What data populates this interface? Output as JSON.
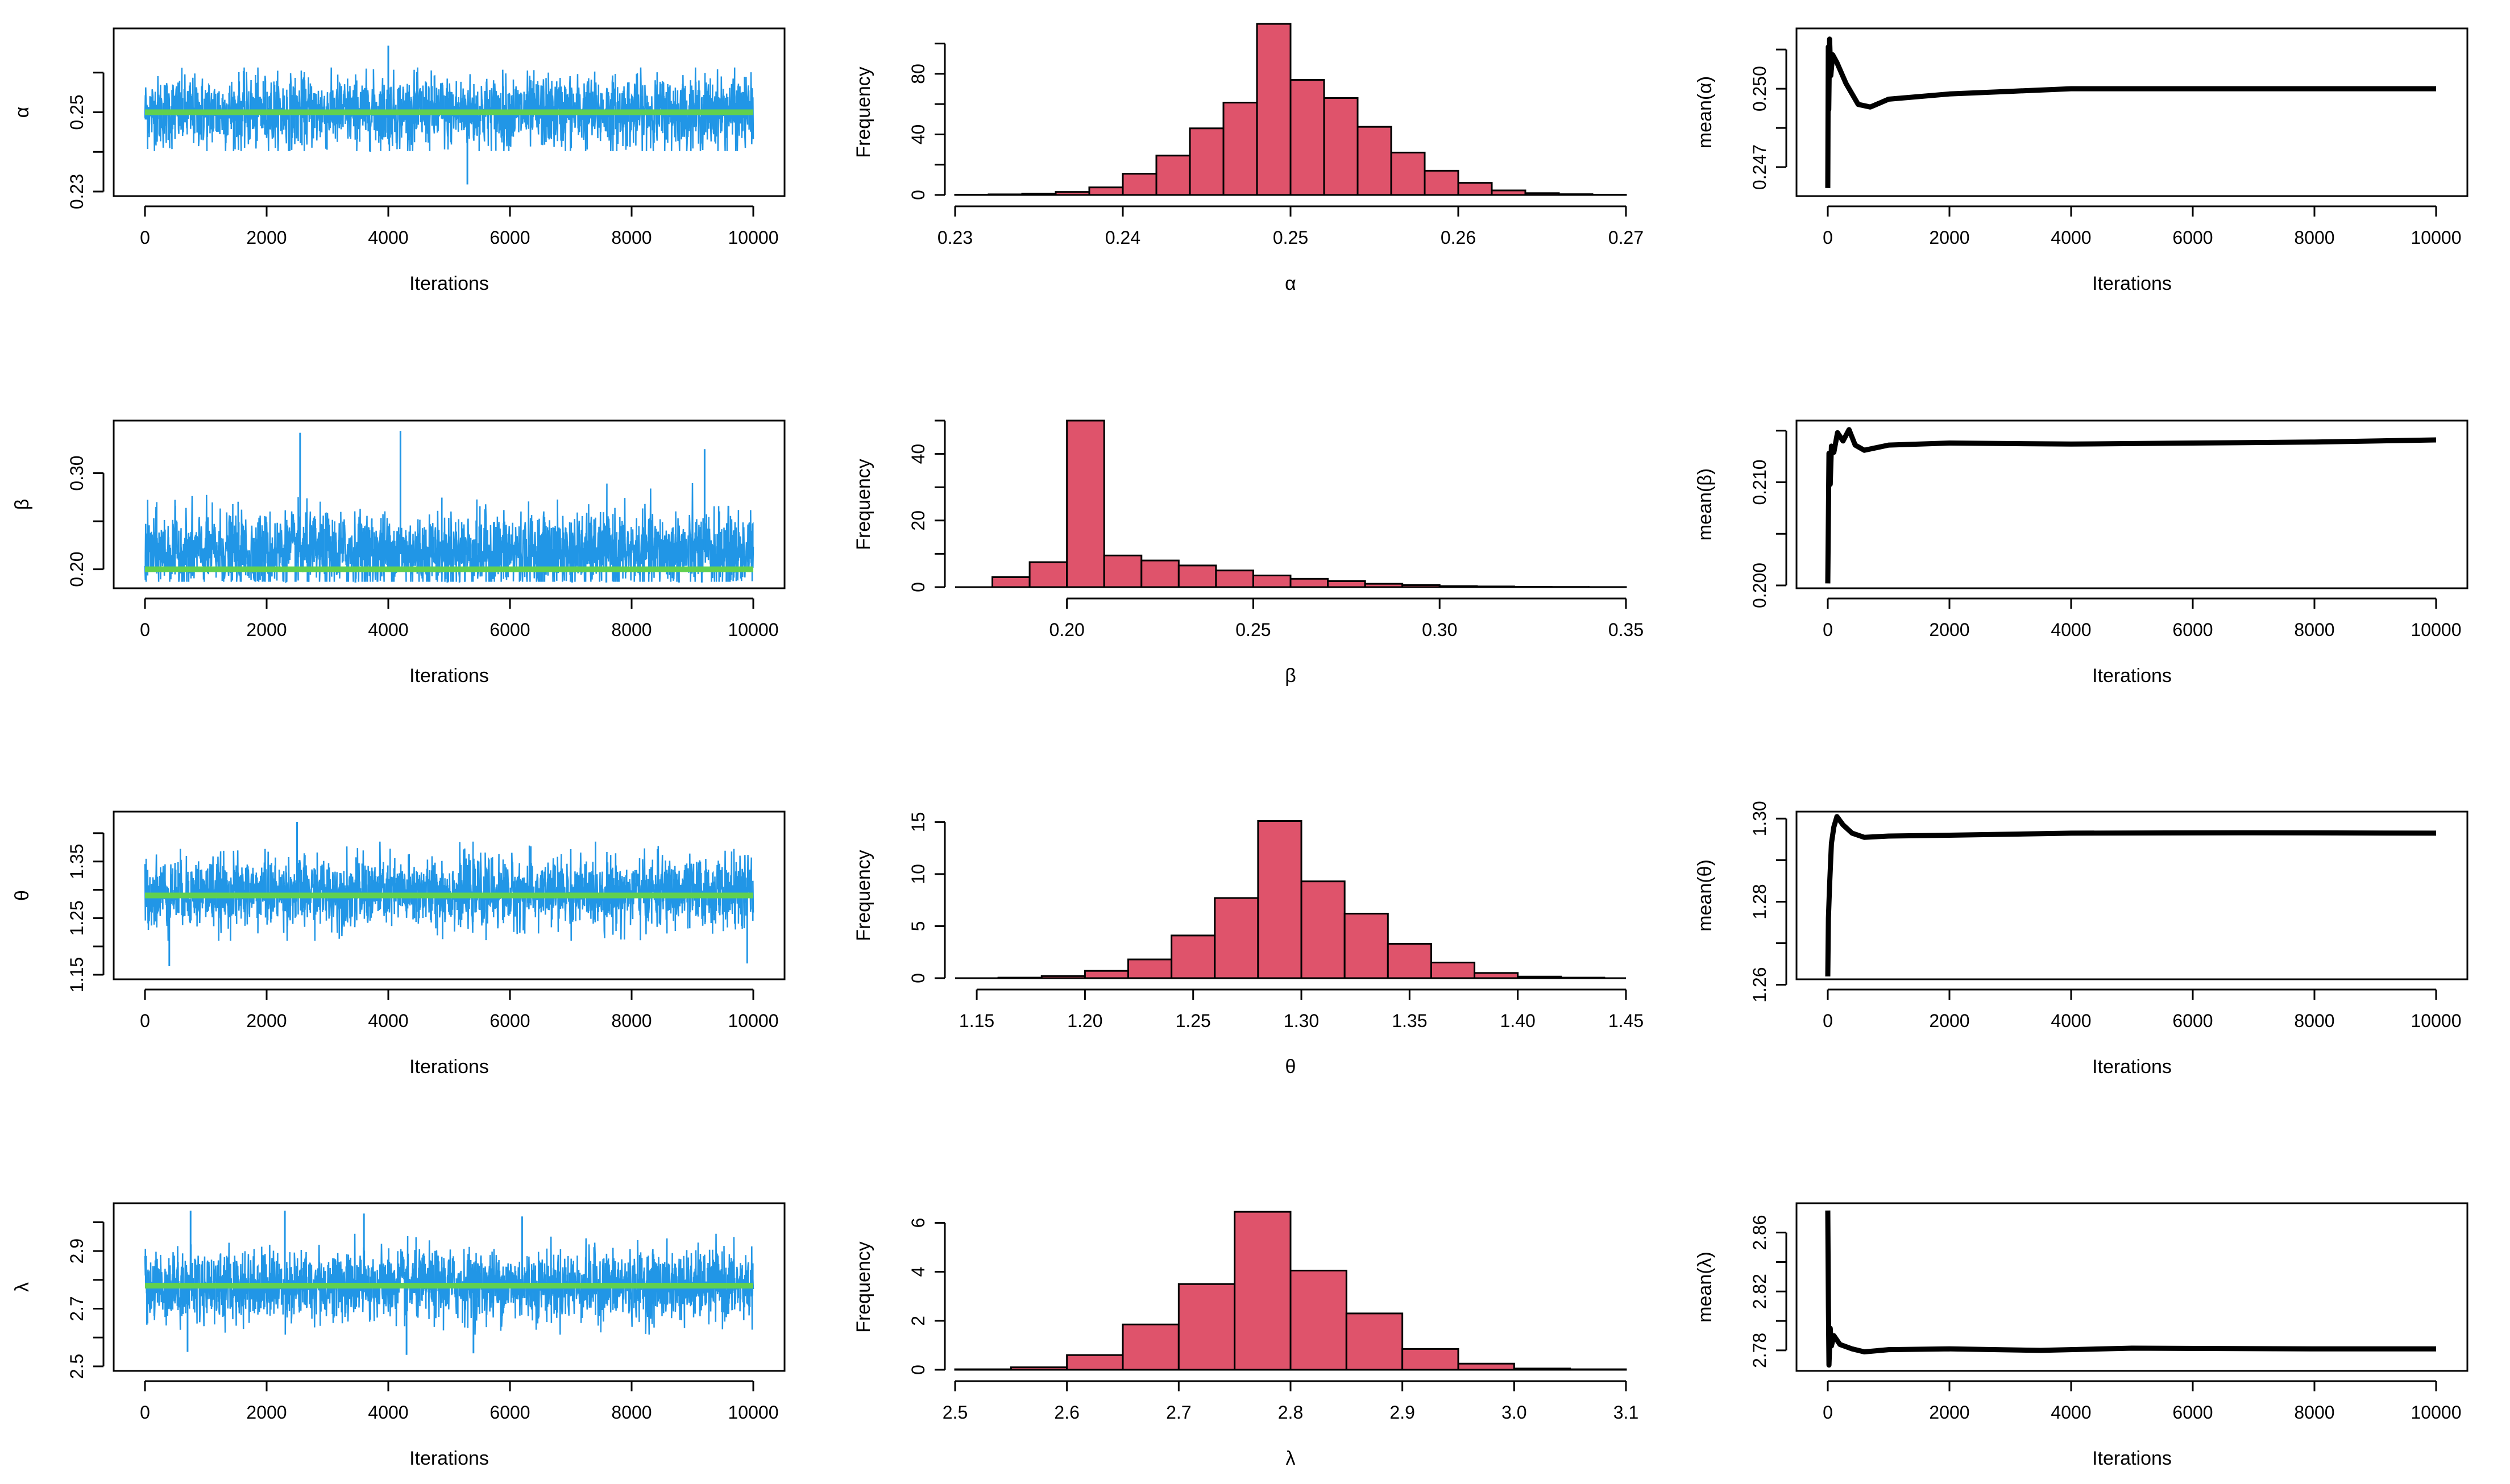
{
  "styles": {
    "trace_color": "#2196e6",
    "true_value_color": "#61d04f",
    "hist_fill": "#df536b",
    "line_color": "#000000"
  },
  "panels": [
    {
      "param": "α",
      "trace": {
        "type": "line",
        "xlabel": "Iterations",
        "ylabel": "α",
        "xlim": [
          0,
          10000
        ],
        "ylim": [
          0.23,
          0.27
        ],
        "x_ticks": [
          0,
          2000,
          4000,
          6000,
          8000,
          10000
        ],
        "y_ticks": [
          0.23,
          0.25
        ],
        "y_tick_labels": [
          "0.23",
          "0.25"
        ],
        "y_minor_ticks": [
          0.24,
          0.26
        ],
        "mean": 0.25,
        "sd": 0.0045,
        "spread_min": 0.2402,
        "spread_max": 0.2613,
        "extreme_lows": [
          {
            "x": 5300,
            "y": 0.2318
          }
        ],
        "extreme_highs": [
          {
            "x": 4000,
            "y": 0.2668
          }
        ],
        "true_value": 0.25
      },
      "histogram": {
        "type": "bar",
        "xlabel": "α",
        "ylabel": "Frequency",
        "xlim": [
          0.23,
          0.27
        ],
        "ylim": [
          0,
          110
        ],
        "x_ticks": [
          0.23,
          0.24,
          0.25,
          0.26,
          0.27
        ],
        "x_tick_labels": [
          "0.23",
          "0.24",
          "0.25",
          "0.26",
          "0.27"
        ],
        "y_ticks": [
          0,
          40,
          80
        ],
        "y_minor_ticks": [
          20,
          60,
          100
        ],
        "bins_start": 0.23,
        "bin_width": 0.002,
        "counts": [
          0.2,
          0.4,
          0.8,
          2,
          5,
          14,
          26,
          44,
          61,
          113,
          76,
          64,
          45,
          28,
          16,
          8,
          3,
          1.2,
          0.5,
          0.2
        ]
      },
      "running_mean": {
        "type": "line",
        "xlabel": "Iterations",
        "ylabel": "mean(α)",
        "xlim": [
          0,
          10000
        ],
        "ylim": [
          0.246,
          0.2522
        ],
        "x_ticks": [
          0,
          2000,
          4000,
          6000,
          8000,
          10000
        ],
        "y_ticks": [
          0.247,
          0.25
        ],
        "y_tick_labels": [
          "0.247",
          "0.250"
        ],
        "y_minor_ticks": [
          0.2485,
          0.2515
        ],
        "points": [
          [
            0,
            0.2462
          ],
          [
            8,
            0.2516
          ],
          [
            16,
            0.2492
          ],
          [
            30,
            0.2519
          ],
          [
            50,
            0.2505
          ],
          [
            80,
            0.2513
          ],
          [
            150,
            0.251
          ],
          [
            300,
            0.2502
          ],
          [
            500,
            0.2494
          ],
          [
            700,
            0.2493
          ],
          [
            1000,
            0.2496
          ],
          [
            2000,
            0.2498
          ],
          [
            3000,
            0.2499
          ],
          [
            4000,
            0.25
          ],
          [
            10000,
            0.25
          ]
        ]
      }
    },
    {
      "param": "β",
      "trace": {
        "type": "line",
        "xlabel": "Iterations",
        "ylabel": "β",
        "xlim": [
          0,
          10000
        ],
        "ylim": [
          0.185,
          0.35
        ],
        "x_ticks": [
          0,
          2000,
          4000,
          6000,
          8000,
          10000
        ],
        "y_ticks": [
          0.2,
          0.3
        ],
        "y_tick_labels": [
          "0.20",
          "0.30"
        ],
        "y_minor_ticks": [
          0.25
        ],
        "mean": 0.218,
        "sd": 0.02,
        "spread_min": 0.187,
        "spread_max": 0.3,
        "extreme_highs": [
          {
            "x": 2550,
            "y": 0.342
          },
          {
            "x": 4200,
            "y": 0.344
          },
          {
            "x": 9200,
            "y": 0.325
          }
        ],
        "extreme_lows": [],
        "true_value": 0.2
      },
      "histogram": {
        "type": "bar",
        "xlabel": "β",
        "ylabel": "Frequency",
        "xlim": [
          0.17,
          0.35
        ],
        "ylim": [
          0,
          50
        ],
        "x_ticks": [
          0.2,
          0.25,
          0.3,
          0.35
        ],
        "x_tick_labels": [
          "0.20",
          "0.25",
          "0.30",
          "0.35"
        ],
        "y_ticks": [
          0,
          20,
          40
        ],
        "y_minor_ticks": [
          10,
          30,
          50
        ],
        "bins_start": 0.18,
        "bin_width": 0.01,
        "counts": [
          3,
          7.5,
          50,
          9.5,
          8,
          6.5,
          5,
          3.5,
          2.5,
          1.8,
          1,
          0.6,
          0.3,
          0.2,
          0.1,
          0.05,
          0.02
        ]
      },
      "running_mean": {
        "type": "line",
        "xlabel": "Iterations",
        "ylabel": "mean(β)",
        "xlim": [
          0,
          10000
        ],
        "ylim": [
          0.2,
          0.2157
        ],
        "x_ticks": [
          0,
          2000,
          4000,
          6000,
          8000,
          10000
        ],
        "y_ticks": [
          0.2,
          0.21
        ],
        "y_tick_labels": [
          "0.200",
          "0.210"
        ],
        "y_minor_ticks": [
          0.205,
          0.215
        ],
        "points": [
          [
            0,
            0.2002
          ],
          [
            20,
            0.2128
          ],
          [
            40,
            0.2098
          ],
          [
            60,
            0.2135
          ],
          [
            100,
            0.2129
          ],
          [
            160,
            0.2148
          ],
          [
            250,
            0.214
          ],
          [
            350,
            0.2151
          ],
          [
            450,
            0.2136
          ],
          [
            600,
            0.2131
          ],
          [
            1000,
            0.2136
          ],
          [
            2000,
            0.2138
          ],
          [
            4000,
            0.2137
          ],
          [
            6000,
            0.2138
          ],
          [
            8000,
            0.2139
          ],
          [
            10000,
            0.2141
          ]
        ]
      }
    },
    {
      "param": "θ",
      "trace": {
        "type": "line",
        "xlabel": "Iterations",
        "ylabel": "θ",
        "xlim": [
          0,
          10000
        ],
        "ylim": [
          1.15,
          1.43
        ],
        "x_ticks": [
          0,
          2000,
          4000,
          6000,
          8000,
          10000
        ],
        "y_ticks": [
          1.15,
          1.25,
          1.35
        ],
        "y_tick_labels": [
          "1.15",
          "1.25",
          "1.35"
        ],
        "y_minor_ticks": [
          1.2,
          1.3,
          1.4
        ],
        "mean": 1.295,
        "sd": 0.03,
        "spread_min": 1.21,
        "spread_max": 1.385,
        "extreme_lows": [
          {
            "x": 400,
            "y": 1.165
          },
          {
            "x": 9900,
            "y": 1.17
          }
        ],
        "extreme_highs": [
          {
            "x": 2500,
            "y": 1.42
          }
        ],
        "true_value": 1.29
      },
      "histogram": {
        "type": "bar",
        "xlabel": "θ",
        "ylabel": "Frequency",
        "xlim": [
          1.14,
          1.45
        ],
        "ylim": [
          0,
          16
        ],
        "x_ticks": [
          1.15,
          1.2,
          1.25,
          1.3,
          1.35,
          1.4,
          1.45
        ],
        "x_tick_labels": [
          "1.15",
          "1.20",
          "1.25",
          "1.30",
          "1.35",
          "1.40",
          "1.45"
        ],
        "y_ticks": [
          0,
          5,
          10,
          15
        ],
        "y_minor_ticks": [],
        "bins_start": 1.16,
        "bin_width": 0.02,
        "counts": [
          0.05,
          0.2,
          0.7,
          1.8,
          4.1,
          7.7,
          15.1,
          9.3,
          6.2,
          3.3,
          1.5,
          0.5,
          0.15,
          0.05
        ]
      },
      "running_mean": {
        "type": "line",
        "xlabel": "Iterations",
        "ylabel": "mean(θ)",
        "xlim": [
          0,
          10000
        ],
        "ylim": [
          1.262,
          1.301
        ],
        "x_ticks": [
          0,
          2000,
          4000,
          6000,
          8000,
          10000
        ],
        "y_ticks": [
          1.26,
          1.28,
          1.3
        ],
        "y_tick_labels": [
          "1.26",
          "1.28",
          "1.30"
        ],
        "y_minor_ticks": [
          1.27,
          1.29
        ],
        "points": [
          [
            0,
            1.262
          ],
          [
            10,
            1.276
          ],
          [
            30,
            1.284
          ],
          [
            60,
            1.294
          ],
          [
            100,
            1.298
          ],
          [
            150,
            1.3005
          ],
          [
            250,
            1.2985
          ],
          [
            400,
            1.2965
          ],
          [
            600,
            1.2955
          ],
          [
            1000,
            1.2958
          ],
          [
            2000,
            1.296
          ],
          [
            4000,
            1.2965
          ],
          [
            7000,
            1.2966
          ],
          [
            10000,
            1.2965
          ]
        ]
      }
    },
    {
      "param": "λ",
      "trace": {
        "type": "line",
        "xlabel": "Iterations",
        "ylabel": "λ",
        "xlim": [
          0,
          10000
        ],
        "ylim": [
          2.5,
          3.05
        ],
        "x_ticks": [
          0,
          2000,
          4000,
          6000,
          8000,
          10000
        ],
        "y_ticks": [
          2.5,
          2.7,
          2.9
        ],
        "y_tick_labels": [
          "2.5",
          "2.7",
          "2.9"
        ],
        "y_minor_ticks": [
          2.6,
          2.8,
          3.0
        ],
        "mean": 2.78,
        "sd": 0.06,
        "spread_min": 2.61,
        "spread_max": 2.96,
        "extreme_lows": [
          {
            "x": 700,
            "y": 2.55
          },
          {
            "x": 4300,
            "y": 2.54
          },
          {
            "x": 5400,
            "y": 2.545
          }
        ],
        "extreme_highs": [
          {
            "x": 750,
            "y": 3.04
          },
          {
            "x": 2300,
            "y": 3.04
          },
          {
            "x": 3600,
            "y": 3.03
          },
          {
            "x": 6200,
            "y": 3.02
          }
        ],
        "true_value": 2.78
      },
      "histogram": {
        "type": "bar",
        "xlabel": "λ",
        "ylabel": "Frequency",
        "xlim": [
          2.5,
          3.1
        ],
        "ylim": [
          0,
          6.8
        ],
        "x_ticks": [
          2.5,
          2.6,
          2.7,
          2.8,
          2.9,
          3.0,
          3.1
        ],
        "x_tick_labels": [
          "2.5",
          "2.6",
          "2.7",
          "2.8",
          "2.9",
          "3.0",
          "3.1"
        ],
        "y_ticks": [
          0,
          2,
          4,
          6
        ],
        "y_minor_ticks": [],
        "bins_start": 2.5,
        "bin_width": 0.05,
        "counts": [
          0.02,
          0.1,
          0.6,
          1.85,
          3.5,
          6.45,
          4.05,
          2.3,
          0.85,
          0.25,
          0.05,
          0.02
        ]
      },
      "running_mean": {
        "type": "line",
        "xlabel": "Iterations",
        "ylabel": "mean(λ)",
        "xlim": [
          0,
          10000
        ],
        "ylim": [
          2.768,
          2.878
        ],
        "x_ticks": [
          0,
          2000,
          4000,
          6000,
          8000,
          10000
        ],
        "y_ticks": [
          2.78,
          2.82,
          2.86
        ],
        "y_tick_labels": [
          "2.78",
          "2.82",
          "2.86"
        ],
        "y_minor_ticks": [
          2.8,
          2.84
        ],
        "points": [
          [
            0,
            2.875
          ],
          [
            10,
            2.81
          ],
          [
            20,
            2.77
          ],
          [
            40,
            2.795
          ],
          [
            60,
            2.783
          ],
          [
            100,
            2.79
          ],
          [
            200,
            2.784
          ],
          [
            400,
            2.781
          ],
          [
            600,
            2.779
          ],
          [
            1000,
            2.7805
          ],
          [
            2000,
            2.781
          ],
          [
            3500,
            2.78
          ],
          [
            5000,
            2.7815
          ],
          [
            8000,
            2.781
          ],
          [
            10000,
            2.781
          ]
        ]
      }
    }
  ]
}
